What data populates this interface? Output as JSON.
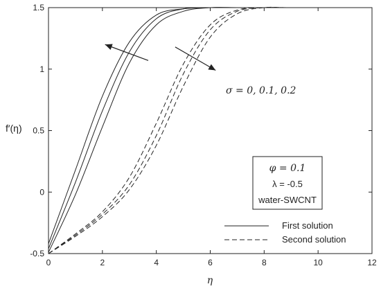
{
  "chart_data": {
    "type": "line",
    "xlabel": "η",
    "ylabel": "f′(η)",
    "xlim": [
      0,
      12
    ],
    "ylim": [
      -0.5,
      1.5
    ],
    "x_ticks": [
      "0",
      "2",
      "4",
      "6",
      "8",
      "10",
      "12"
    ],
    "y_ticks": [
      "-0.5",
      "0",
      "0.5",
      "1",
      "1.5"
    ],
    "grid": false,
    "annotation": "σ = 0, 0.1, 0.2",
    "parameter_box": [
      "φ = 0.1",
      "λ = -0.5",
      "water-SWCNT"
    ],
    "legend": [
      {
        "label": "First solution",
        "style": "solid"
      },
      {
        "label": "Second solution",
        "style": "dashed"
      }
    ],
    "legend_position": "bottom-right",
    "series": [
      {
        "group": "First solution",
        "style": "solid",
        "x": [
          0,
          1,
          2,
          3,
          4,
          5,
          6,
          7
        ],
        "y": [
          -0.42,
          0.18,
          0.78,
          1.22,
          1.44,
          1.49,
          1.5,
          1.5
        ]
      },
      {
        "group": "First solution",
        "style": "solid",
        "x": [
          0,
          1,
          2,
          3,
          4,
          5,
          6,
          7
        ],
        "y": [
          -0.46,
          0.08,
          0.66,
          1.14,
          1.41,
          1.49,
          1.5,
          1.5
        ]
      },
      {
        "group": "First solution",
        "style": "solid",
        "x": [
          0,
          1,
          2,
          3,
          4,
          5,
          6,
          7,
          8
        ],
        "y": [
          -0.49,
          -0.02,
          0.53,
          1.05,
          1.36,
          1.47,
          1.5,
          1.5,
          1.5
        ]
      },
      {
        "group": "Second solution",
        "style": "dashed",
        "x": [
          0,
          1,
          2,
          3,
          4,
          5,
          6,
          7,
          8,
          9
        ],
        "y": [
          -0.5,
          -0.34,
          -0.16,
          0.12,
          0.56,
          1.04,
          1.36,
          1.48,
          1.5,
          1.5
        ]
      },
      {
        "group": "Second solution",
        "style": "dashed",
        "x": [
          0,
          1,
          2,
          3,
          4,
          5,
          6,
          7,
          8,
          9
        ],
        "y": [
          -0.5,
          -0.35,
          -0.18,
          0.06,
          0.46,
          0.96,
          1.32,
          1.47,
          1.5,
          1.5
        ]
      },
      {
        "group": "Second solution",
        "style": "dashed",
        "x": [
          0,
          1,
          2,
          3,
          4,
          5,
          6,
          7,
          8,
          9
        ],
        "y": [
          -0.5,
          -0.36,
          -0.2,
          0.02,
          0.38,
          0.86,
          1.26,
          1.45,
          1.5,
          1.5
        ]
      }
    ],
    "arrows": [
      {
        "from": [
          3.7,
          1.07
        ],
        "to": [
          2.1,
          1.2
        ]
      },
      {
        "from": [
          4.7,
          1.18
        ],
        "to": [
          6.2,
          0.99
        ]
      }
    ]
  }
}
